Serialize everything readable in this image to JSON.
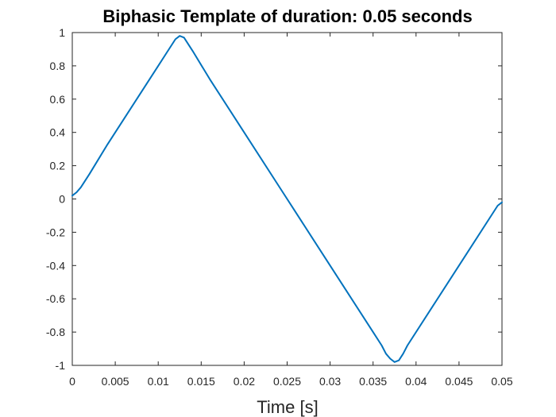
{
  "chart_data": {
    "type": "line",
    "title": "Biphasic Template of duration: 0.05 seconds",
    "xlabel": "Time [s]",
    "ylabel": "",
    "xlim": [
      0,
      0.05
    ],
    "ylim": [
      -1,
      1
    ],
    "grid": false,
    "x_ticks": [
      0,
      0.005,
      0.01,
      0.015,
      0.02,
      0.025,
      0.03,
      0.035,
      0.04,
      0.045,
      0.05
    ],
    "x_tick_labels": [
      "0",
      "0.005",
      "0.01",
      "0.015",
      "0.02",
      "0.025",
      "0.03",
      "0.035",
      "0.04",
      "0.045",
      "0.05"
    ],
    "y_ticks": [
      -1,
      -0.8,
      -0.6,
      -0.4,
      -0.2,
      0,
      0.2,
      0.4,
      0.6,
      0.8,
      1
    ],
    "y_tick_labels": [
      "-1",
      "-0.8",
      "-0.6",
      "-0.4",
      "-0.2",
      "0",
      "0.2",
      "0.4",
      "0.6",
      "0.8",
      "1"
    ],
    "series": [
      {
        "color": "#0072BD",
        "x": [
          0,
          0.0005,
          0.001,
          0.002,
          0.004,
          0.006,
          0.008,
          0.01,
          0.011,
          0.0115,
          0.012,
          0.0125,
          0.013,
          0.0135,
          0.014,
          0.016,
          0.02,
          0.024,
          0.025,
          0.028,
          0.032,
          0.035,
          0.036,
          0.0365,
          0.037,
          0.0375,
          0.038,
          0.0385,
          0.039,
          0.042,
          0.046,
          0.049,
          0.0495,
          0.05
        ],
        "y": [
          0.02,
          0.04,
          0.07,
          0.15,
          0.32,
          0.48,
          0.64,
          0.8,
          0.88,
          0.92,
          0.96,
          0.98,
          0.97,
          0.93,
          0.89,
          0.72,
          0.4,
          0.08,
          0.0,
          -0.24,
          -0.56,
          -0.8,
          -0.88,
          -0.93,
          -0.96,
          -0.98,
          -0.97,
          -0.93,
          -0.88,
          -0.64,
          -0.32,
          -0.08,
          -0.04,
          -0.02
        ]
      }
    ]
  }
}
